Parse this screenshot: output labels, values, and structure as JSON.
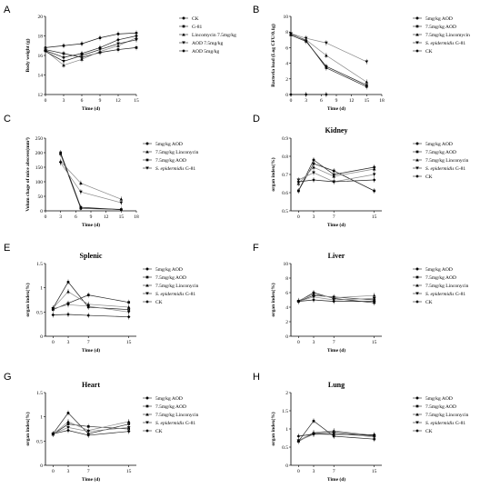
{
  "panels": [
    {
      "id": "A",
      "letter": "A",
      "title": "",
      "type": "line",
      "xlabel": "Time (d)",
      "ylabel": "Body weight (g)",
      "xlim": [
        0,
        15
      ],
      "xticks": [
        0,
        3,
        6,
        9,
        12,
        15
      ],
      "ylim": [
        12,
        20
      ],
      "yticks": [
        12,
        14,
        16,
        18,
        20
      ],
      "legend_pos": "right",
      "series": [
        {
          "name": "CK",
          "marker": "circle",
          "x": [
            0,
            3,
            6,
            9,
            12,
            15
          ],
          "y": [
            16.8,
            17.0,
            17.2,
            17.8,
            18.2,
            18.3
          ]
        },
        {
          "name": "G-81",
          "marker": "square",
          "x": [
            0,
            3,
            6,
            9,
            12,
            15
          ],
          "y": [
            16.6,
            16.2,
            15.8,
            16.3,
            16.6,
            16.8
          ]
        },
        {
          "name": "Lincomycin 7.5mg/kg",
          "marker": "triangle-up",
          "x": [
            0,
            3,
            6,
            9,
            12,
            15
          ],
          "y": [
            16.5,
            15.0,
            15.6,
            16.4,
            17.0,
            17.8
          ]
        },
        {
          "name": "AOD 7.5mg/kg",
          "marker": "triangle-down",
          "x": [
            0,
            3,
            6,
            9,
            12,
            15
          ],
          "y": [
            16.4,
            15.4,
            16.0,
            16.6,
            17.2,
            17.6
          ]
        },
        {
          "name": "AOD 5mg/kg",
          "marker": "diamond",
          "x": [
            0,
            3,
            6,
            9,
            12,
            15
          ],
          "y": [
            16.5,
            15.8,
            16.2,
            16.8,
            17.6,
            18.0
          ]
        }
      ]
    },
    {
      "id": "B",
      "letter": "B",
      "title": "",
      "type": "line",
      "xlabel": "Time (d)",
      "ylabel": "Bacteria load (Log CFU/0.1g)",
      "xlim": [
        0,
        18
      ],
      "xticks": [
        0,
        3,
        6,
        9,
        12,
        15,
        18
      ],
      "ylim": [
        0,
        10
      ],
      "yticks": [
        0,
        2,
        4,
        6,
        8,
        10
      ],
      "legend_pos": "right",
      "series": [
        {
          "name": "5mg/kg AOD",
          "marker": "circle",
          "x": [
            0,
            3,
            7,
            15
          ],
          "y": [
            7.8,
            6.9,
            3.4,
            1.0
          ]
        },
        {
          "name": "7.5mg/kg AOD",
          "marker": "square",
          "x": [
            0,
            3,
            7,
            15
          ],
          "y": [
            7.6,
            6.8,
            3.6,
            1.2
          ]
        },
        {
          "name": "7.5mg/kg Lincomycin",
          "marker": "triangle-up",
          "x": [
            0,
            3,
            7,
            15
          ],
          "y": [
            7.7,
            7.0,
            5.0,
            1.6
          ]
        },
        {
          "name": "S. epidermidis G-81",
          "marker": "triangle-down",
          "x": [
            0,
            3,
            7,
            15
          ],
          "y": [
            7.8,
            7.2,
            6.6,
            4.2
          ]
        },
        {
          "name": "CK",
          "marker": "diamond",
          "x": [
            0,
            3,
            7
          ],
          "y": [
            0,
            0,
            0
          ]
        }
      ]
    },
    {
      "id": "C",
      "letter": "C",
      "title": "",
      "type": "line",
      "xlabel": "Time (d)",
      "ylabel": "Volum chage of mice abscess(mm³)",
      "xlim": [
        0,
        18
      ],
      "xticks": [
        0,
        3,
        6,
        9,
        12,
        15,
        18
      ],
      "ylim": [
        0,
        250
      ],
      "yticks": [
        0,
        50,
        100,
        150,
        200,
        250
      ],
      "legend_pos": "right",
      "series": [
        {
          "name": "5mg/kg AOD",
          "marker": "circle",
          "x": [
            3,
            7,
            15
          ],
          "y": [
            195,
            8,
            5
          ]
        },
        {
          "name": "7.5mg/kg Linconycin",
          "marker": "triangle-up",
          "x": [
            3,
            7,
            15
          ],
          "y": [
            170,
            95,
            40
          ]
        },
        {
          "name": "7.5mg/kg AOD",
          "marker": "square",
          "x": [
            3,
            7,
            15
          ],
          "y": [
            200,
            12,
            4
          ]
        },
        {
          "name": "S. epidermidis G-81",
          "marker": "triangle-down",
          "x": [
            3,
            7,
            15
          ],
          "y": [
            165,
            65,
            28
          ]
        }
      ]
    },
    {
      "id": "D",
      "letter": "D",
      "title": "Kidney",
      "type": "line",
      "xlabel": "Time (d)",
      "ylabel": "organ index(%)",
      "xlim": [
        -1.5,
        16.5
      ],
      "xticks": [
        0,
        3,
        7,
        15
      ],
      "ylim": [
        0.5,
        0.9
      ],
      "yticks": [
        0.5,
        0.6,
        0.7,
        0.8,
        0.9
      ],
      "legend_pos": "right",
      "series": [
        {
          "name": "5mg/kg AOD",
          "marker": "circle",
          "x": [
            0,
            3,
            7,
            15
          ],
          "y": [
            0.61,
            0.78,
            0.7,
            0.74
          ]
        },
        {
          "name": "7.5mg/kg AOD",
          "marker": "square",
          "x": [
            0,
            3,
            7,
            15
          ],
          "y": [
            0.61,
            0.76,
            0.72,
            0.61
          ]
        },
        {
          "name": "7.5mg/kg Linconycin",
          "marker": "triangle-up",
          "x": [
            0,
            3,
            7,
            15
          ],
          "y": [
            0.65,
            0.74,
            0.69,
            0.73
          ]
        },
        {
          "name": "S. epidermidis G-81",
          "marker": "triangle-down",
          "x": [
            0,
            3,
            7,
            15
          ],
          "y": [
            0.67,
            0.71,
            0.66,
            0.7
          ]
        },
        {
          "name": "CK",
          "marker": "diamond",
          "x": [
            0,
            3,
            7,
            15
          ],
          "y": [
            0.66,
            0.67,
            0.66,
            0.67
          ]
        }
      ]
    },
    {
      "id": "E",
      "letter": "E",
      "title": "Splenic",
      "type": "line",
      "xlabel": "Time (d)",
      "ylabel": "organ index(%)",
      "xlim": [
        -1.5,
        16.5
      ],
      "xticks": [
        0,
        3,
        7,
        15
      ],
      "ylim": [
        0,
        1.5
      ],
      "yticks": [
        0,
        0.5,
        1.0,
        1.5
      ],
      "legend_pos": "right",
      "series": [
        {
          "name": "5mg/kg AOD",
          "marker": "circle",
          "x": [
            0,
            3,
            7,
            15
          ],
          "y": [
            0.58,
            1.12,
            0.6,
            0.55
          ]
        },
        {
          "name": "7.5mg/kg AOD",
          "marker": "square",
          "x": [
            0,
            3,
            7,
            15
          ],
          "y": [
            0.55,
            0.68,
            0.85,
            0.7
          ]
        },
        {
          "name": "7.5mg/kg Linconycin",
          "marker": "triangle-up",
          "x": [
            0,
            3,
            7,
            15
          ],
          "y": [
            0.58,
            0.92,
            0.66,
            0.6
          ]
        },
        {
          "name": "S. epidermidis G-81",
          "marker": "triangle-down",
          "x": [
            0,
            3,
            7,
            15
          ],
          "y": [
            0.57,
            0.65,
            0.62,
            0.5
          ]
        },
        {
          "name": "CK",
          "marker": "diamond",
          "x": [
            0,
            3,
            7,
            15
          ],
          "y": [
            0.44,
            0.45,
            0.43,
            0.4
          ]
        }
      ]
    },
    {
      "id": "F",
      "letter": "F",
      "title": "Liver",
      "type": "line",
      "xlabel": "Time (d)",
      "ylabel": "organ index(%)",
      "xlim": [
        -1.5,
        16.5
      ],
      "xticks": [
        0,
        3,
        7,
        15
      ],
      "ylim": [
        0,
        10
      ],
      "yticks": [
        0,
        2,
        4,
        6,
        8,
        10
      ],
      "legend_pos": "right",
      "series": [
        {
          "name": "5mg/kg AOD",
          "marker": "circle",
          "x": [
            0,
            3,
            7,
            15
          ],
          "y": [
            4.8,
            6.0,
            5.2,
            4.6
          ]
        },
        {
          "name": "7.5mg/kg AOD",
          "marker": "square",
          "x": [
            0,
            3,
            7,
            15
          ],
          "y": [
            4.8,
            5.6,
            5.4,
            5.0
          ]
        },
        {
          "name": "7.5mg/kg Linconycin",
          "marker": "triangle-up",
          "x": [
            0,
            3,
            7,
            15
          ],
          "y": [
            4.9,
            5.8,
            5.3,
            5.6
          ]
        },
        {
          "name": "S. epidermidis G-81",
          "marker": "triangle-down",
          "x": [
            0,
            3,
            7,
            15
          ],
          "y": [
            4.8,
            5.4,
            5.0,
            5.2
          ]
        },
        {
          "name": "CK",
          "marker": "diamond",
          "x": [
            0,
            3,
            7,
            15
          ],
          "y": [
            4.8,
            5.0,
            4.8,
            4.8
          ]
        }
      ]
    },
    {
      "id": "G",
      "letter": "G",
      "title": "Heart",
      "type": "line",
      "xlabel": "Time (d)",
      "ylabel": "organ index(%)",
      "xlim": [
        -1.5,
        16.5
      ],
      "xticks": [
        0,
        3,
        7,
        15
      ],
      "ylim": [
        0,
        1.5
      ],
      "yticks": [
        0,
        0.5,
        1.0,
        1.5
      ],
      "legend_pos": "right",
      "series": [
        {
          "name": "5mg/kg AOD",
          "marker": "circle",
          "x": [
            0,
            3,
            7,
            15
          ],
          "y": [
            0.65,
            1.08,
            0.65,
            0.85
          ]
        },
        {
          "name": "7.5mg/kg AOD",
          "marker": "square",
          "x": [
            0,
            3,
            7,
            15
          ],
          "y": [
            0.64,
            0.85,
            0.8,
            0.75
          ]
        },
        {
          "name": "7.5mg/kg Linconycin",
          "marker": "triangle-up",
          "x": [
            0,
            3,
            7,
            15
          ],
          "y": [
            0.64,
            0.9,
            0.72,
            0.9
          ]
        },
        {
          "name": "S. epidermidis G-81",
          "marker": "triangle-down",
          "x": [
            0,
            3,
            7,
            15
          ],
          "y": [
            0.65,
            0.78,
            0.7,
            0.78
          ]
        },
        {
          "name": "CK",
          "marker": "diamond",
          "x": [
            0,
            3,
            7,
            15
          ],
          "y": [
            0.65,
            0.72,
            0.62,
            0.7
          ]
        }
      ]
    },
    {
      "id": "H",
      "letter": "H",
      "title": "Lung",
      "type": "line",
      "xlabel": "Time (d)",
      "ylabel": "organ index(%)",
      "xlim": [
        -1.5,
        16.5
      ],
      "xticks": [
        0,
        3,
        7,
        15
      ],
      "ylim": [
        0,
        2.0
      ],
      "yticks": [
        0,
        0.5,
        1.0,
        1.5,
        2.0
      ],
      "legend_pos": "right",
      "series": [
        {
          "name": "5mg/kg AOD",
          "marker": "circle",
          "x": [
            0,
            3,
            7,
            15
          ],
          "y": [
            0.66,
            1.22,
            0.8,
            0.72
          ]
        },
        {
          "name": "7.5mg/kg AOD",
          "marker": "square",
          "x": [
            0,
            3,
            7,
            15
          ],
          "y": [
            0.66,
            0.88,
            0.92,
            0.8
          ]
        },
        {
          "name": "7.5mg/kg Linconycin",
          "marker": "triangle-up",
          "x": [
            0,
            3,
            7,
            15
          ],
          "y": [
            0.68,
            0.9,
            0.95,
            0.82
          ]
        },
        {
          "name": "S. epidermidis G-81",
          "marker": "triangle-down",
          "x": [
            0,
            3,
            7,
            15
          ],
          "y": [
            0.68,
            0.85,
            0.88,
            0.78
          ]
        },
        {
          "name": "CK",
          "marker": "diamond",
          "x": [
            0,
            3,
            7,
            15
          ],
          "y": [
            0.8,
            0.86,
            0.85,
            0.84
          ]
        }
      ]
    }
  ],
  "colors": {
    "CK": "#000000",
    "G-81": "#111111",
    "Lincomycin": "#333333",
    "AOD": "#222222",
    "gray_line": "#999999"
  }
}
